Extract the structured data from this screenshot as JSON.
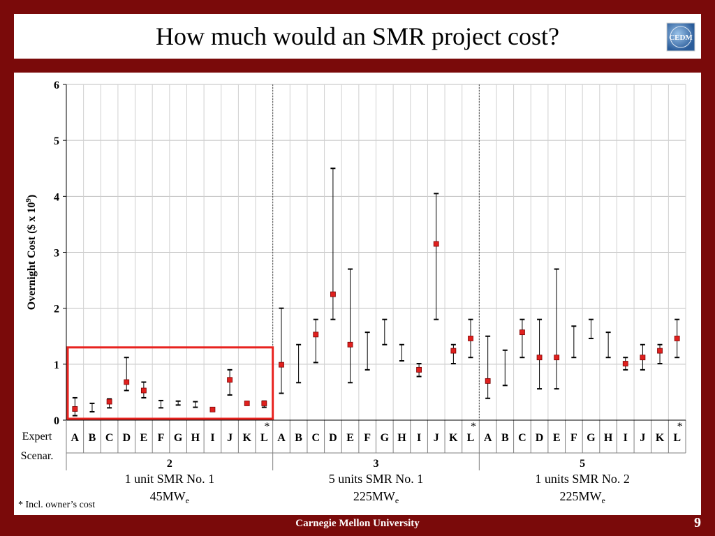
{
  "slide": {
    "title": "How much would an SMR project cost?",
    "footer": "Carnegie Mellon University",
    "page_number": "9",
    "logo_text": "CEDM",
    "footnote": "* Incl. owner’s cost",
    "row_label_1": "Expert",
    "row_label_2": "Scenar."
  },
  "colors": {
    "frame": "#7a0a0a",
    "marker": "#e0201e",
    "highlight_box": "#e8231f"
  },
  "chart_data": {
    "type": "scatter",
    "ylabel": "Overnight Cost ($ x 10",
    "ylabel_sup": "9",
    "ylabel_close": ")",
    "ylim": [
      0,
      6
    ],
    "yticks": [
      "0",
      "1",
      "2",
      "3",
      "4",
      "5",
      "6"
    ],
    "grid": true,
    "highlight": {
      "group": "2",
      "ymin": 0,
      "ymax": 1.3
    },
    "groups": [
      {
        "scenario": "2",
        "name_line1": "1 unit SMR No. 1",
        "name_line2": "45MW",
        "name_sub": "e",
        "experts": [
          {
            "label": "A",
            "median": 0.2,
            "low": 0.08,
            "high": 0.4
          },
          {
            "label": "B",
            "median": null,
            "low": 0.15,
            "high": 0.3
          },
          {
            "label": "C",
            "median": 0.33,
            "low": 0.22,
            "high": 0.38
          },
          {
            "label": "D",
            "median": 0.68,
            "low": 0.53,
            "high": 1.12
          },
          {
            "label": "E",
            "median": 0.53,
            "low": 0.4,
            "high": 0.68
          },
          {
            "label": "F",
            "median": null,
            "low": 0.22,
            "high": 0.35
          },
          {
            "label": "G",
            "median": null,
            "low": 0.27,
            "high": 0.34
          },
          {
            "label": "H",
            "median": null,
            "low": 0.23,
            "high": 0.33
          },
          {
            "label": "I",
            "median": 0.19,
            "low": 0.16,
            "high": 0.21
          },
          {
            "label": "J",
            "median": 0.72,
            "low": 0.45,
            "high": 0.9
          },
          {
            "label": "K",
            "median": 0.3,
            "low": 0.27,
            "high": 0.33
          },
          {
            "label": "L",
            "median": 0.3,
            "low": 0.23,
            "high": 0.34,
            "asterisk": "*"
          }
        ]
      },
      {
        "scenario": "3",
        "name_line1": "5 units SMR No. 1",
        "name_line2": "225MW",
        "name_sub": "e",
        "experts": [
          {
            "label": "A",
            "median": 0.99,
            "low": 0.48,
            "high": 2.0
          },
          {
            "label": "B",
            "median": null,
            "low": 0.67,
            "high": 1.35
          },
          {
            "label": "C",
            "median": 1.53,
            "low": 1.03,
            "high": 1.8
          },
          {
            "label": "D",
            "median": 2.25,
            "low": 1.8,
            "high": 4.5
          },
          {
            "label": "E",
            "median": 1.35,
            "low": 0.67,
            "high": 2.7
          },
          {
            "label": "F",
            "median": null,
            "low": 0.9,
            "high": 1.57
          },
          {
            "label": "G",
            "median": null,
            "low": 1.35,
            "high": 1.8
          },
          {
            "label": "H",
            "median": null,
            "low": 1.06,
            "high": 1.35
          },
          {
            "label": "I",
            "median": 0.9,
            "low": 0.78,
            "high": 1.01
          },
          {
            "label": "J",
            "median": 3.15,
            "low": 1.8,
            "high": 4.05
          },
          {
            "label": "K",
            "median": 1.24,
            "low": 1.01,
            "high": 1.35
          },
          {
            "label": "L",
            "median": 1.46,
            "low": 1.12,
            "high": 1.8,
            "asterisk": "*"
          }
        ]
      },
      {
        "scenario": "5",
        "name_line1": "1 units SMR No. 2",
        "name_line2": "225MW",
        "name_sub": "e",
        "experts": [
          {
            "label": "A",
            "median": 0.7,
            "low": 0.39,
            "high": 1.5
          },
          {
            "label": "B",
            "median": null,
            "low": 0.62,
            "high": 1.25
          },
          {
            "label": "C",
            "median": 1.57,
            "low": 1.12,
            "high": 1.8
          },
          {
            "label": "D",
            "median": 1.12,
            "low": 0.56,
            "high": 1.8
          },
          {
            "label": "E",
            "median": 1.12,
            "low": 0.56,
            "high": 2.7
          },
          {
            "label": "F",
            "median": null,
            "low": 1.12,
            "high": 1.68
          },
          {
            "label": "G",
            "median": null,
            "low": 1.46,
            "high": 1.8
          },
          {
            "label": "H",
            "median": null,
            "low": 1.12,
            "high": 1.57
          },
          {
            "label": "I",
            "median": 1.01,
            "low": 0.9,
            "high": 1.12
          },
          {
            "label": "J",
            "median": 1.12,
            "low": 0.9,
            "high": 1.35
          },
          {
            "label": "K",
            "median": 1.24,
            "low": 1.01,
            "high": 1.35
          },
          {
            "label": "L",
            "median": 1.46,
            "low": 1.12,
            "high": 1.8,
            "asterisk": "*"
          }
        ]
      }
    ]
  }
}
